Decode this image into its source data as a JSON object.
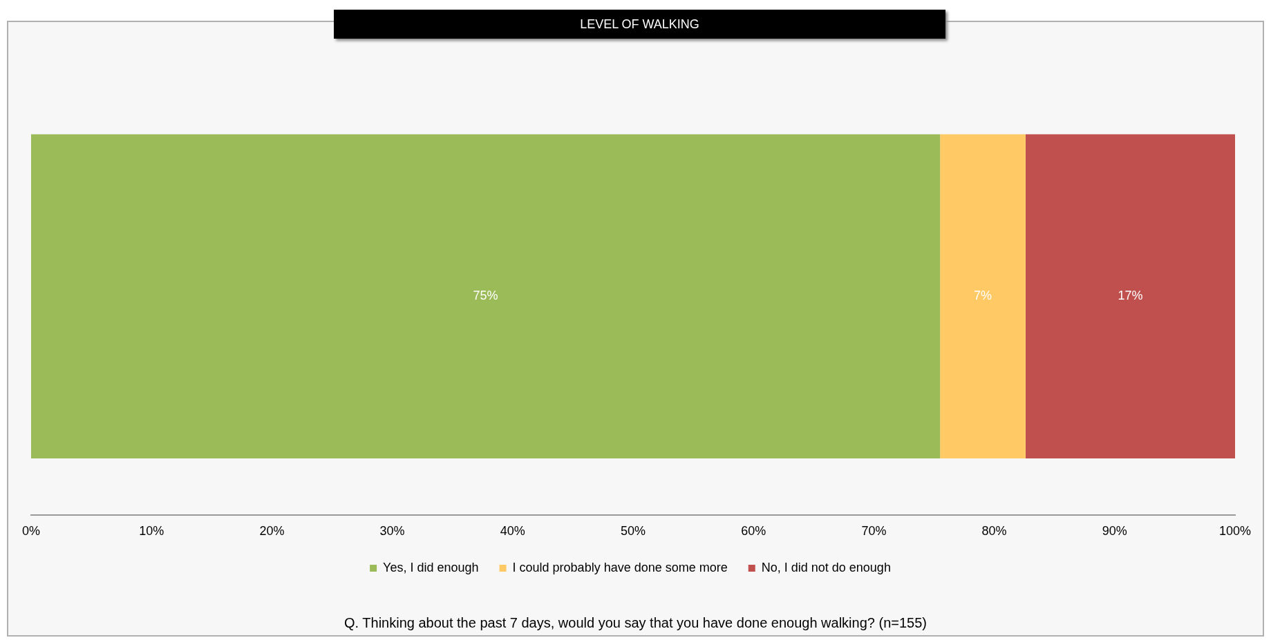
{
  "chart_data": {
    "type": "bar",
    "orientation": "horizontal",
    "stacked": true,
    "title": "LEVEL OF WALKING",
    "categories": [
      null
    ],
    "series": [
      {
        "name": "Yes, I did enough",
        "color": "#9bbb59",
        "values": [
          75.5
        ],
        "value_labels": [
          "75%"
        ]
      },
      {
        "name": "I could probably have done some more",
        "color": "#ffc966",
        "values": [
          7.1
        ],
        "value_labels": [
          "7%"
        ]
      },
      {
        "name": "No, I did not do enough",
        "color": "#c0504d",
        "values": [
          17.4
        ],
        "value_labels": [
          "17%"
        ]
      }
    ],
    "xlim": [
      0,
      100
    ],
    "xticks": [
      {
        "value": 0,
        "label": "0%"
      },
      {
        "value": 10,
        "label": "10%"
      },
      {
        "value": 20,
        "label": "20%"
      },
      {
        "value": 30,
        "label": "30%"
      },
      {
        "value": 40,
        "label": "40%"
      },
      {
        "value": 50,
        "label": "50%"
      },
      {
        "value": 60,
        "label": "60%"
      },
      {
        "value": 70,
        "label": "70%"
      },
      {
        "value": 80,
        "label": "80%"
      },
      {
        "value": 90,
        "label": "90%"
      },
      {
        "value": 100,
        "label": "100%"
      }
    ],
    "grid": false,
    "legend": "bottom",
    "tick_labels": "x",
    "annotations": [
      "Q. Thinking about the past 7 days, would you say that you have done enough walking? (n=155)"
    ]
  }
}
